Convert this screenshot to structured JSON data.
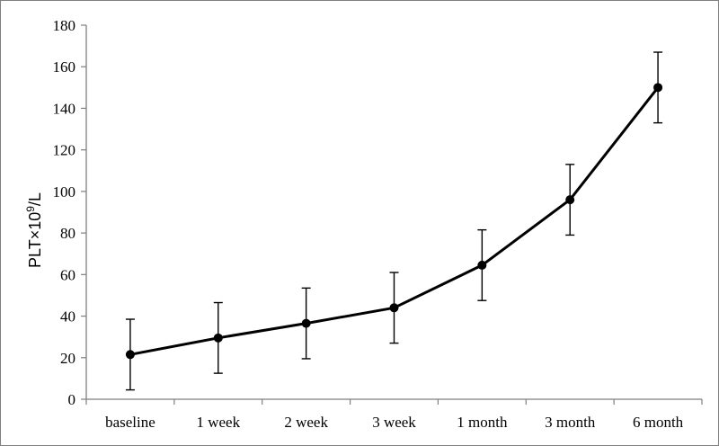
{
  "chart_data": {
    "type": "line",
    "categories": [
      "baseline",
      "1 week",
      "2 week",
      "3 week",
      "1 month",
      "3 month",
      "6 month"
    ],
    "series": [
      {
        "values": [
          21.5,
          29.5,
          36.5,
          44,
          64.5,
          96,
          150
        ],
        "error_low": [
          4.5,
          12.5,
          19.5,
          27,
          47.5,
          79,
          133
        ],
        "error_high": [
          38.5,
          46.5,
          53.5,
          61,
          81.5,
          113,
          167
        ]
      }
    ],
    "xlabel": "",
    "ylabel": "PLT×10⁹/L",
    "ylabel_parts": {
      "base": "PLT×10",
      "sup": "9",
      "unit": "/L"
    },
    "ylim": [
      0,
      180
    ],
    "yticks": [
      "0",
      "20",
      "40",
      "60",
      "80",
      "100",
      "120",
      "140",
      "160",
      "180"
    ],
    "ytick_values": [
      0,
      20,
      40,
      60,
      80,
      100,
      120,
      140,
      160,
      180
    ],
    "grid": false,
    "legend": "none",
    "colors": {
      "line": "#000000",
      "marker": "#000000",
      "error_bar": "#000000",
      "axis": "#7f7f7f"
    }
  }
}
